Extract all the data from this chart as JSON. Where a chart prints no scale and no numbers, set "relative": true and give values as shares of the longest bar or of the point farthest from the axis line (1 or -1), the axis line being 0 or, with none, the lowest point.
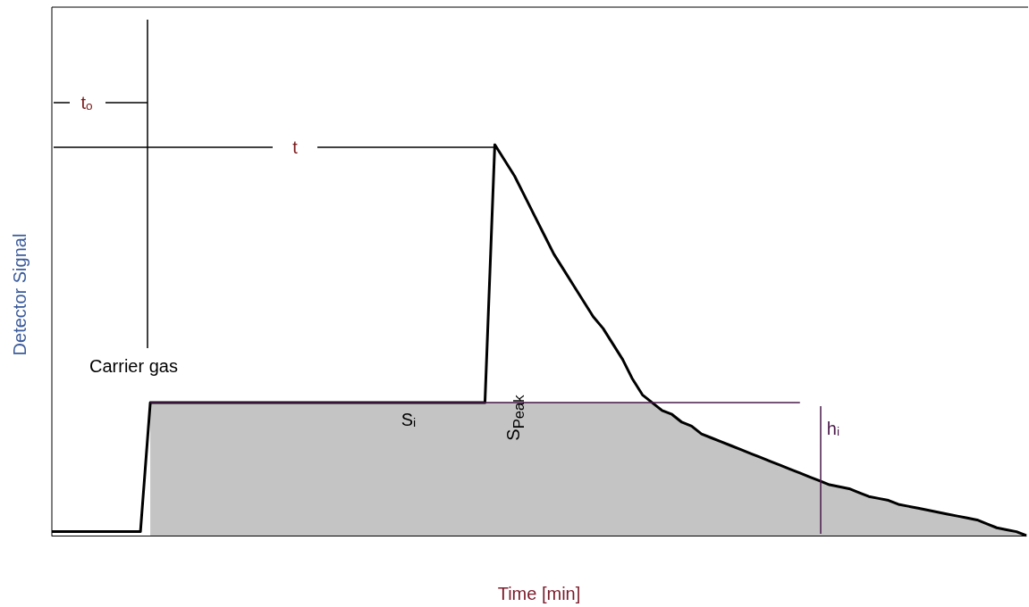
{
  "chart_data": {
    "type": "line",
    "relative": true,
    "xlabel": "Time [min]",
    "ylabel": "Detector Signal",
    "ref_lines": [
      {
        "axis": "y",
        "value": 0.34,
        "color": "#4a1a4a"
      }
    ],
    "annotations": [
      "tₒ",
      "t",
      "Carrier gas",
      "S$_{Peak}$",
      "Sᵢ",
      "hᵢ"
    ],
    "categories": [
      null,
      null,
      null,
      null,
      null,
      null,
      null,
      null,
      null,
      null,
      null,
      null,
      null,
      null,
      null,
      null,
      null,
      null,
      null,
      null,
      null,
      null,
      null,
      null,
      null,
      null,
      null,
      null,
      null,
      null,
      null,
      null,
      null,
      null,
      null,
      null,
      null,
      null,
      null,
      null,
      null,
      null,
      null,
      null,
      null,
      null,
      null,
      null,
      null,
      null,
      null,
      null,
      null,
      null,
      null,
      null,
      null,
      null,
      null,
      null,
      null,
      null,
      null,
      null,
      null,
      null,
      null,
      null,
      null,
      null,
      null,
      null,
      null,
      null,
      null,
      null,
      null,
      null,
      null,
      null,
      null,
      null,
      null,
      null,
      null,
      null,
      null,
      null,
      null,
      null,
      null,
      null,
      null,
      null,
      null,
      null,
      null,
      null,
      null,
      null
    ],
    "series": [
      {
        "type": "area",
        "color": "#c4c4c4",
        "values": [
          null,
          null,
          null,
          null,
          null,
          null,
          null,
          null,
          null,
          null,
          0.34,
          0.34,
          0.34,
          0.34,
          0.34,
          0.34,
          0.34,
          0.34,
          0.34,
          0.34,
          0.34,
          0.34,
          0.34,
          0.34,
          0.34,
          0.34,
          0.34,
          0.34,
          0.34,
          0.34,
          0.34,
          0.34,
          0.34,
          0.34,
          0.34,
          0.34,
          0.34,
          0.34,
          0.34,
          0.34,
          0.34,
          0.34,
          0.34,
          0.34,
          0.34,
          0.34,
          0.34,
          0.34,
          0.34,
          0.34,
          0.34,
          0.34,
          0.34,
          0.34,
          0.34,
          0.34,
          0.34,
          0.34,
          0.34,
          0.34,
          0.34,
          0.34,
          0.32,
          0.31,
          0.29,
          0.28,
          0.26,
          0.25,
          0.24,
          0.23,
          0.22,
          0.21,
          0.2,
          0.19,
          0.18,
          0.17,
          0.16,
          0.15,
          0.14,
          0.13,
          0.125,
          0.12,
          0.11,
          0.1,
          0.095,
          0.09,
          0.08,
          0.075,
          0.07,
          0.065,
          0.06,
          0.055,
          0.05,
          0.045,
          0.04,
          0.03,
          0.02,
          0.015,
          0.01,
          0
        ]
      },
      {
        "color": "#000000",
        "values": [
          0.01,
          0.01,
          0.01,
          0.01,
          0.01,
          0.01,
          0.01,
          0.01,
          0.01,
          0.01,
          0.34,
          0.34,
          0.34,
          0.34,
          0.34,
          0.34,
          0.34,
          0.34,
          0.34,
          0.34,
          0.34,
          0.34,
          0.34,
          0.34,
          0.34,
          0.34,
          0.34,
          0.34,
          0.34,
          0.34,
          0.34,
          0.34,
          0.34,
          0.34,
          0.34,
          0.34,
          0.34,
          0.34,
          0.34,
          0.34,
          0.34,
          0.34,
          0.34,
          0.34,
          0.34,
          1,
          0.96,
          0.92,
          0.87,
          0.82,
          0.77,
          0.72,
          0.68,
          0.64,
          0.6,
          0.56,
          0.53,
          0.49,
          0.45,
          0.4,
          0.36,
          0.34,
          0.32,
          0.31,
          0.29,
          0.28,
          0.26,
          0.25,
          0.24,
          0.23,
          0.22,
          0.21,
          0.2,
          0.19,
          0.18,
          0.17,
          0.16,
          0.15,
          0.14,
          0.13,
          0.125,
          0.12,
          0.11,
          0.1,
          0.095,
          0.09,
          0.08,
          0.075,
          0.07,
          0.065,
          0.06,
          0.055,
          0.05,
          0.045,
          0.04,
          0.03,
          0.02,
          0.015,
          0.01,
          0
        ]
      }
    ]
  }
}
